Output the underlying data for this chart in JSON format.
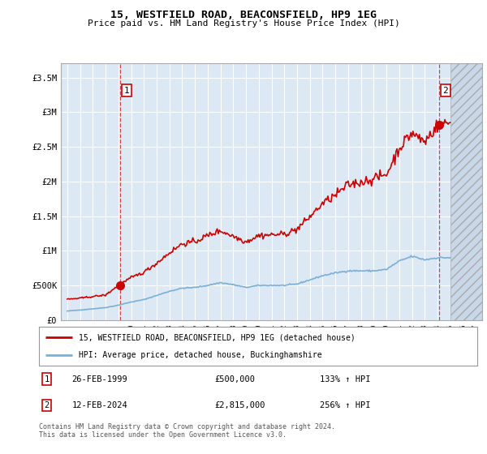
{
  "title": "15, WESTFIELD ROAD, BEACONSFIELD, HP9 1EG",
  "subtitle": "Price paid vs. HM Land Registry's House Price Index (HPI)",
  "legend_line1": "15, WESTFIELD ROAD, BEACONSFIELD, HP9 1EG (detached house)",
  "legend_line2": "HPI: Average price, detached house, Buckinghamshire",
  "footnote": "Contains HM Land Registry data © Crown copyright and database right 2024.\nThis data is licensed under the Open Government Licence v3.0.",
  "transactions": [
    {
      "label": "1",
      "date": "26-FEB-1999",
      "price": 500000,
      "hpi_pct": "133% ↑ HPI",
      "year": 1999.15
    },
    {
      "label": "2",
      "date": "12-FEB-2024",
      "price": 2815000,
      "hpi_pct": "256% ↑ HPI",
      "year": 2024.12
    }
  ],
  "xlim": [
    1994.5,
    2027.5
  ],
  "ylim": [
    0,
    3700000
  ],
  "yticks": [
    0,
    500000,
    1000000,
    1500000,
    2000000,
    2500000,
    3000000,
    3500000
  ],
  "ytick_labels": [
    "£0",
    "£500K",
    "£1M",
    "£1.5M",
    "£2M",
    "£2.5M",
    "£3M",
    "£3.5M"
  ],
  "xticks": [
    1995,
    1996,
    1997,
    1998,
    1999,
    2000,
    2001,
    2002,
    2003,
    2004,
    2005,
    2006,
    2007,
    2008,
    2009,
    2010,
    2011,
    2012,
    2013,
    2014,
    2015,
    2016,
    2017,
    2018,
    2019,
    2020,
    2021,
    2022,
    2023,
    2024,
    2025,
    2026,
    2027
  ],
  "bg_color": "#dce9f5",
  "hatch_start": 2025.0,
  "red_color": "#cc0000",
  "blue_color": "#7bafd4",
  "grid_color": "#ffffff",
  "marker_box_color": "#cc0000",
  "hpi_annual": [
    1995,
    130000,
    1996,
    145000,
    1997,
    162000,
    1998,
    180000,
    1999,
    215000,
    2000,
    260000,
    2001,
    295000,
    2002,
    355000,
    2003,
    415000,
    2004,
    460000,
    2005,
    470000,
    2006,
    500000,
    2007,
    540000,
    2008,
    510000,
    2009,
    470000,
    2010,
    500000,
    2011,
    500000,
    2012,
    500000,
    2013,
    520000,
    2014,
    580000,
    2015,
    640000,
    2016,
    680000,
    2017,
    710000,
    2018,
    710000,
    2019,
    710000,
    2020,
    730000,
    2021,
    850000,
    2022,
    920000,
    2023,
    870000,
    2024,
    900000,
    2025,
    900000
  ],
  "prop_annual": [
    1995,
    300000,
    1996,
    315000,
    1997,
    340000,
    1998,
    360000,
    1999,
    500000,
    2000,
    610000,
    2001,
    690000,
    2002,
    820000,
    2003,
    970000,
    2004,
    1100000,
    2005,
    1130000,
    2006,
    1220000,
    2007,
    1290000,
    2008,
    1210000,
    2009,
    1130000,
    2010,
    1220000,
    2011,
    1230000,
    2012,
    1240000,
    2013,
    1310000,
    2014,
    1490000,
    2015,
    1680000,
    2016,
    1800000,
    2017,
    1950000,
    2018,
    1990000,
    2019,
    2040000,
    2020,
    2100000,
    2021,
    2480000,
    2022,
    2700000,
    2023,
    2570000,
    2024,
    2815000,
    2025,
    2850000
  ]
}
